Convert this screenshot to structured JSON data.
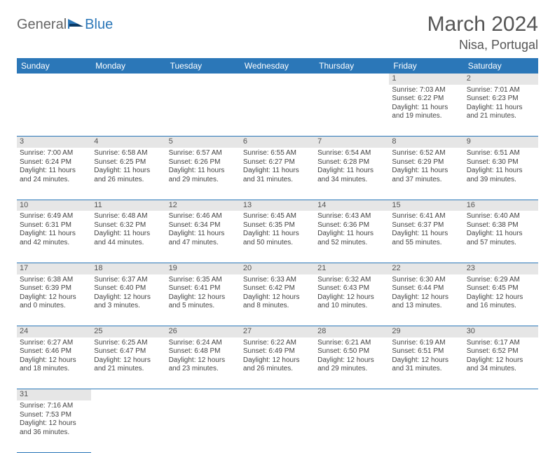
{
  "logo": {
    "general": "General",
    "blue": "Blue"
  },
  "title": "March 2024",
  "location": "Nisa, Portugal",
  "colors": {
    "header_bg": "#2b77b8",
    "header_fg": "#ffffff",
    "daynum_bg": "#e6e6e6",
    "rule": "#2b77b8",
    "text": "#444444"
  },
  "dayHeaders": [
    "Sunday",
    "Monday",
    "Tuesday",
    "Wednesday",
    "Thursday",
    "Friday",
    "Saturday"
  ],
  "weeks": [
    [
      null,
      null,
      null,
      null,
      null,
      {
        "n": "1",
        "sr": "Sunrise: 7:03 AM",
        "ss": "Sunset: 6:22 PM",
        "d1": "Daylight: 11 hours",
        "d2": "and 19 minutes."
      },
      {
        "n": "2",
        "sr": "Sunrise: 7:01 AM",
        "ss": "Sunset: 6:23 PM",
        "d1": "Daylight: 11 hours",
        "d2": "and 21 minutes."
      }
    ],
    [
      {
        "n": "3",
        "sr": "Sunrise: 7:00 AM",
        "ss": "Sunset: 6:24 PM",
        "d1": "Daylight: 11 hours",
        "d2": "and 24 minutes."
      },
      {
        "n": "4",
        "sr": "Sunrise: 6:58 AM",
        "ss": "Sunset: 6:25 PM",
        "d1": "Daylight: 11 hours",
        "d2": "and 26 minutes."
      },
      {
        "n": "5",
        "sr": "Sunrise: 6:57 AM",
        "ss": "Sunset: 6:26 PM",
        "d1": "Daylight: 11 hours",
        "d2": "and 29 minutes."
      },
      {
        "n": "6",
        "sr": "Sunrise: 6:55 AM",
        "ss": "Sunset: 6:27 PM",
        "d1": "Daylight: 11 hours",
        "d2": "and 31 minutes."
      },
      {
        "n": "7",
        "sr": "Sunrise: 6:54 AM",
        "ss": "Sunset: 6:28 PM",
        "d1": "Daylight: 11 hours",
        "d2": "and 34 minutes."
      },
      {
        "n": "8",
        "sr": "Sunrise: 6:52 AM",
        "ss": "Sunset: 6:29 PM",
        "d1": "Daylight: 11 hours",
        "d2": "and 37 minutes."
      },
      {
        "n": "9",
        "sr": "Sunrise: 6:51 AM",
        "ss": "Sunset: 6:30 PM",
        "d1": "Daylight: 11 hours",
        "d2": "and 39 minutes."
      }
    ],
    [
      {
        "n": "10",
        "sr": "Sunrise: 6:49 AM",
        "ss": "Sunset: 6:31 PM",
        "d1": "Daylight: 11 hours",
        "d2": "and 42 minutes."
      },
      {
        "n": "11",
        "sr": "Sunrise: 6:48 AM",
        "ss": "Sunset: 6:32 PM",
        "d1": "Daylight: 11 hours",
        "d2": "and 44 minutes."
      },
      {
        "n": "12",
        "sr": "Sunrise: 6:46 AM",
        "ss": "Sunset: 6:34 PM",
        "d1": "Daylight: 11 hours",
        "d2": "and 47 minutes."
      },
      {
        "n": "13",
        "sr": "Sunrise: 6:45 AM",
        "ss": "Sunset: 6:35 PM",
        "d1": "Daylight: 11 hours",
        "d2": "and 50 minutes."
      },
      {
        "n": "14",
        "sr": "Sunrise: 6:43 AM",
        "ss": "Sunset: 6:36 PM",
        "d1": "Daylight: 11 hours",
        "d2": "and 52 minutes."
      },
      {
        "n": "15",
        "sr": "Sunrise: 6:41 AM",
        "ss": "Sunset: 6:37 PM",
        "d1": "Daylight: 11 hours",
        "d2": "and 55 minutes."
      },
      {
        "n": "16",
        "sr": "Sunrise: 6:40 AM",
        "ss": "Sunset: 6:38 PM",
        "d1": "Daylight: 11 hours",
        "d2": "and 57 minutes."
      }
    ],
    [
      {
        "n": "17",
        "sr": "Sunrise: 6:38 AM",
        "ss": "Sunset: 6:39 PM",
        "d1": "Daylight: 12 hours",
        "d2": "and 0 minutes."
      },
      {
        "n": "18",
        "sr": "Sunrise: 6:37 AM",
        "ss": "Sunset: 6:40 PM",
        "d1": "Daylight: 12 hours",
        "d2": "and 3 minutes."
      },
      {
        "n": "19",
        "sr": "Sunrise: 6:35 AM",
        "ss": "Sunset: 6:41 PM",
        "d1": "Daylight: 12 hours",
        "d2": "and 5 minutes."
      },
      {
        "n": "20",
        "sr": "Sunrise: 6:33 AM",
        "ss": "Sunset: 6:42 PM",
        "d1": "Daylight: 12 hours",
        "d2": "and 8 minutes."
      },
      {
        "n": "21",
        "sr": "Sunrise: 6:32 AM",
        "ss": "Sunset: 6:43 PM",
        "d1": "Daylight: 12 hours",
        "d2": "and 10 minutes."
      },
      {
        "n": "22",
        "sr": "Sunrise: 6:30 AM",
        "ss": "Sunset: 6:44 PM",
        "d1": "Daylight: 12 hours",
        "d2": "and 13 minutes."
      },
      {
        "n": "23",
        "sr": "Sunrise: 6:29 AM",
        "ss": "Sunset: 6:45 PM",
        "d1": "Daylight: 12 hours",
        "d2": "and 16 minutes."
      }
    ],
    [
      {
        "n": "24",
        "sr": "Sunrise: 6:27 AM",
        "ss": "Sunset: 6:46 PM",
        "d1": "Daylight: 12 hours",
        "d2": "and 18 minutes."
      },
      {
        "n": "25",
        "sr": "Sunrise: 6:25 AM",
        "ss": "Sunset: 6:47 PM",
        "d1": "Daylight: 12 hours",
        "d2": "and 21 minutes."
      },
      {
        "n": "26",
        "sr": "Sunrise: 6:24 AM",
        "ss": "Sunset: 6:48 PM",
        "d1": "Daylight: 12 hours",
        "d2": "and 23 minutes."
      },
      {
        "n": "27",
        "sr": "Sunrise: 6:22 AM",
        "ss": "Sunset: 6:49 PM",
        "d1": "Daylight: 12 hours",
        "d2": "and 26 minutes."
      },
      {
        "n": "28",
        "sr": "Sunrise: 6:21 AM",
        "ss": "Sunset: 6:50 PM",
        "d1": "Daylight: 12 hours",
        "d2": "and 29 minutes."
      },
      {
        "n": "29",
        "sr": "Sunrise: 6:19 AM",
        "ss": "Sunset: 6:51 PM",
        "d1": "Daylight: 12 hours",
        "d2": "and 31 minutes."
      },
      {
        "n": "30",
        "sr": "Sunrise: 6:17 AM",
        "ss": "Sunset: 6:52 PM",
        "d1": "Daylight: 12 hours",
        "d2": "and 34 minutes."
      }
    ],
    [
      {
        "n": "31",
        "sr": "Sunrise: 7:16 AM",
        "ss": "Sunset: 7:53 PM",
        "d1": "Daylight: 12 hours",
        "d2": "and 36 minutes."
      },
      null,
      null,
      null,
      null,
      null,
      null
    ]
  ]
}
